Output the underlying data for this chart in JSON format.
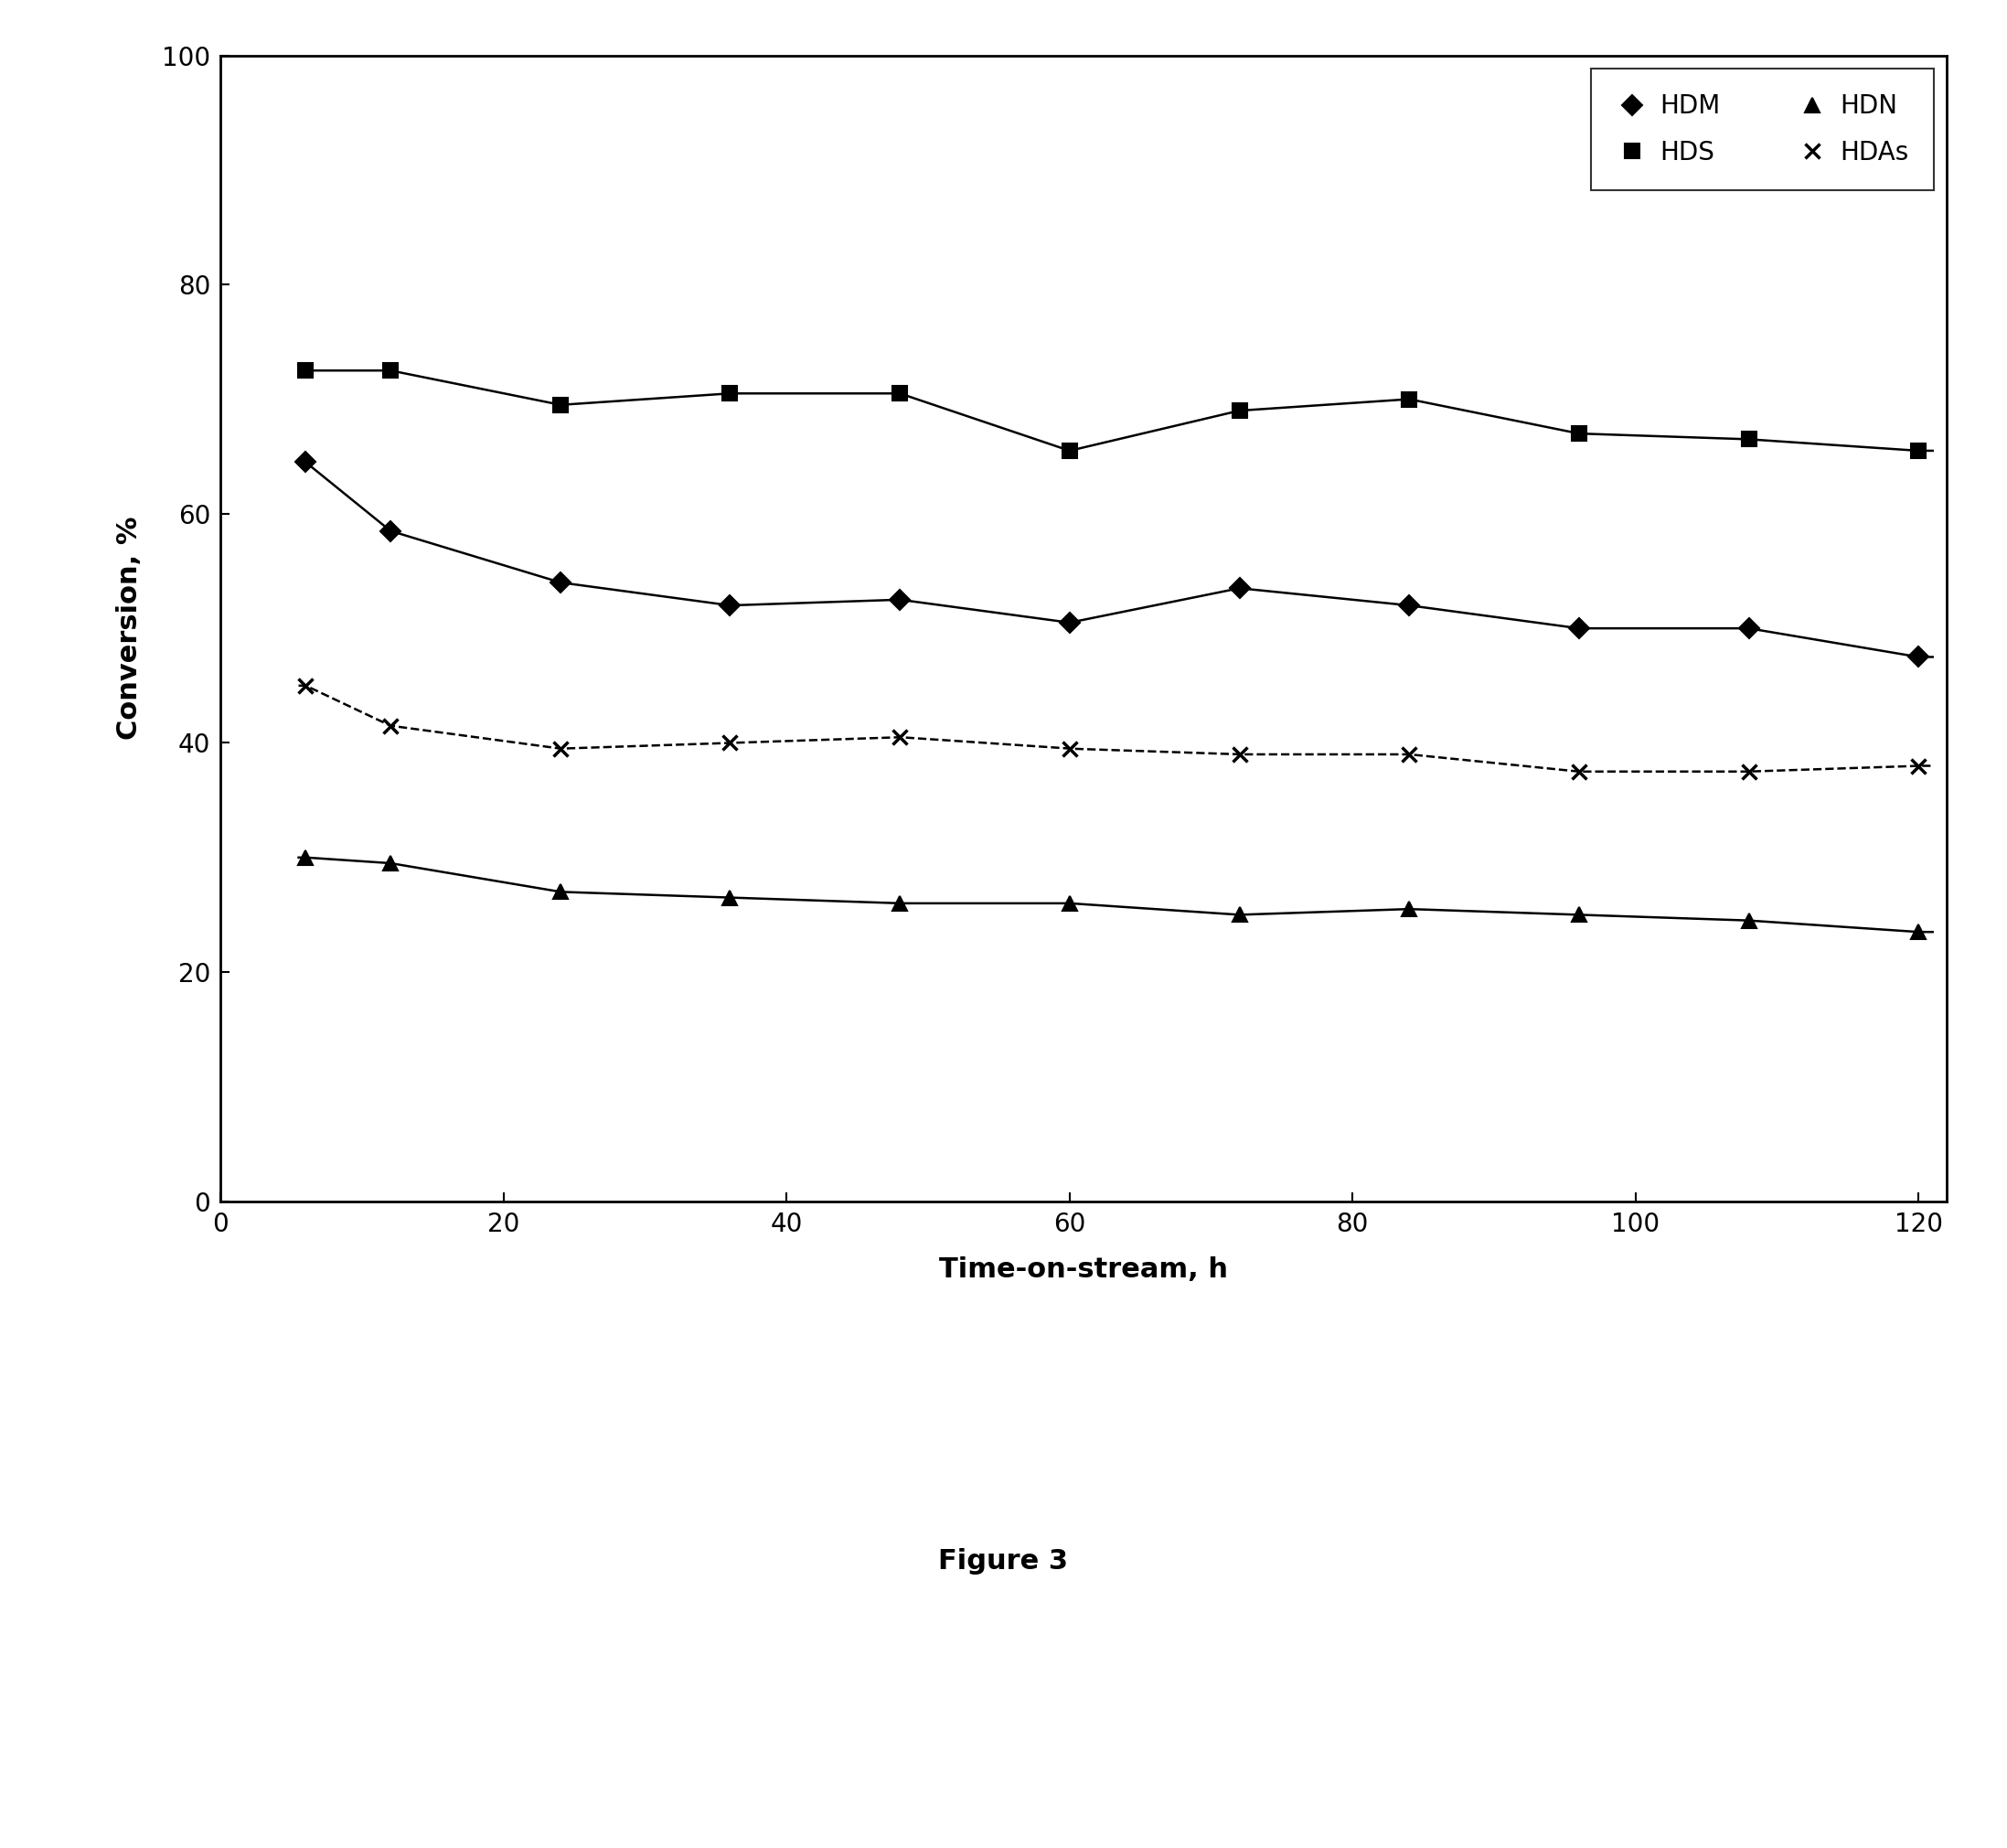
{
  "title": "",
  "xlabel": "Time-on-stream, h",
  "ylabel": "Conversion, %",
  "figure_label": "Figure 3",
  "xlim": [
    0,
    122
  ],
  "ylim": [
    0,
    100
  ],
  "xticks": [
    0,
    20,
    40,
    60,
    80,
    100,
    120
  ],
  "yticks": [
    0,
    20,
    40,
    60,
    80,
    100
  ],
  "series": {
    "HDM": {
      "x": [
        6,
        12,
        24,
        36,
        48,
        60,
        72,
        84,
        96,
        108,
        120
      ],
      "y": [
        64.5,
        58.5,
        54.0,
        52.0,
        52.5,
        50.5,
        53.5,
        52.0,
        50.0,
        50.0,
        47.5
      ],
      "marker": "D",
      "linestyle": "-",
      "color": "black",
      "markersize": 11,
      "linewidth": 1.8,
      "label": "HDM"
    },
    "HDS": {
      "x": [
        6,
        12,
        24,
        36,
        48,
        60,
        72,
        84,
        96,
        108,
        120
      ],
      "y": [
        72.5,
        72.5,
        69.5,
        70.5,
        70.5,
        65.5,
        69.0,
        70.0,
        67.0,
        66.5,
        65.5
      ],
      "marker": "s",
      "linestyle": "-",
      "color": "black",
      "markersize": 12,
      "linewidth": 1.8,
      "label": "HDS"
    },
    "HDN": {
      "x": [
        6,
        12,
        24,
        36,
        48,
        60,
        72,
        84,
        96,
        108,
        120
      ],
      "y": [
        30.0,
        29.5,
        27.0,
        26.5,
        26.0,
        26.0,
        25.0,
        25.5,
        25.0,
        24.5,
        23.5
      ],
      "marker": "^",
      "linestyle": "-",
      "color": "black",
      "markersize": 11,
      "linewidth": 1.8,
      "label": "HDN"
    },
    "HDAs": {
      "x": [
        6,
        12,
        24,
        36,
        48,
        60,
        72,
        84,
        96,
        108,
        120
      ],
      "y": [
        45.0,
        41.5,
        39.5,
        40.0,
        40.5,
        39.5,
        39.0,
        39.0,
        37.5,
        37.5,
        38.0
      ],
      "marker": "x",
      "linestyle": "--",
      "color": "black",
      "markersize": 12,
      "linewidth": 1.8,
      "label": "HDAs"
    }
  },
  "legend_fontsize": 20,
  "axis_label_fontsize": 22,
  "tick_fontsize": 20,
  "figure_label_fontsize": 22,
  "background_color": "#ffffff"
}
